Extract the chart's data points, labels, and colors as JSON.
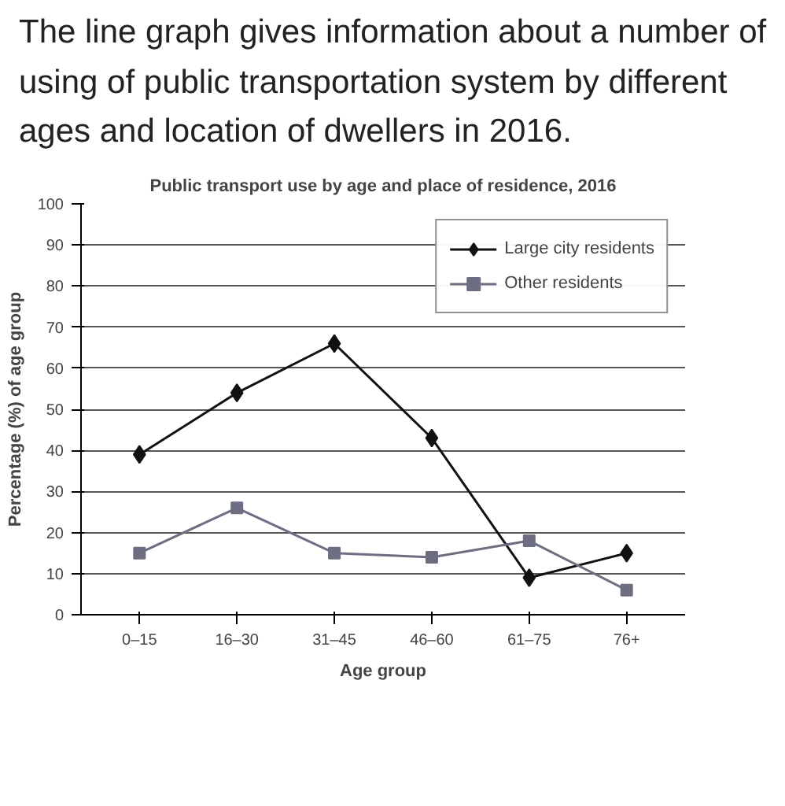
{
  "chart_data": {
    "type": "line",
    "title": "The line graph gives information about a number of using of public transportation system by different ages and location of dwellers in 2016.",
    "subtitle": "Public transport use by age and place of residence, 2016",
    "xlabel": "Age group",
    "ylabel": "Percentage (%) of age group",
    "categories": [
      "0–15",
      "16–30",
      "31–45",
      "46–60",
      "61–75",
      "76+"
    ],
    "series": [
      {
        "name": "Large city residents",
        "color": "#111111",
        "marker": "diamond",
        "values": [
          39,
          54,
          66,
          43,
          9,
          15
        ]
      },
      {
        "name": "Other residents",
        "color": "#6e6e82",
        "marker": "square",
        "values": [
          15,
          26,
          15,
          14,
          18,
          6
        ]
      }
    ],
    "ylim": [
      0,
      100
    ],
    "yticks": [
      0,
      10,
      20,
      30,
      40,
      50,
      60,
      70,
      80,
      90,
      100
    ],
    "grid": "y",
    "legend": "top right"
  }
}
